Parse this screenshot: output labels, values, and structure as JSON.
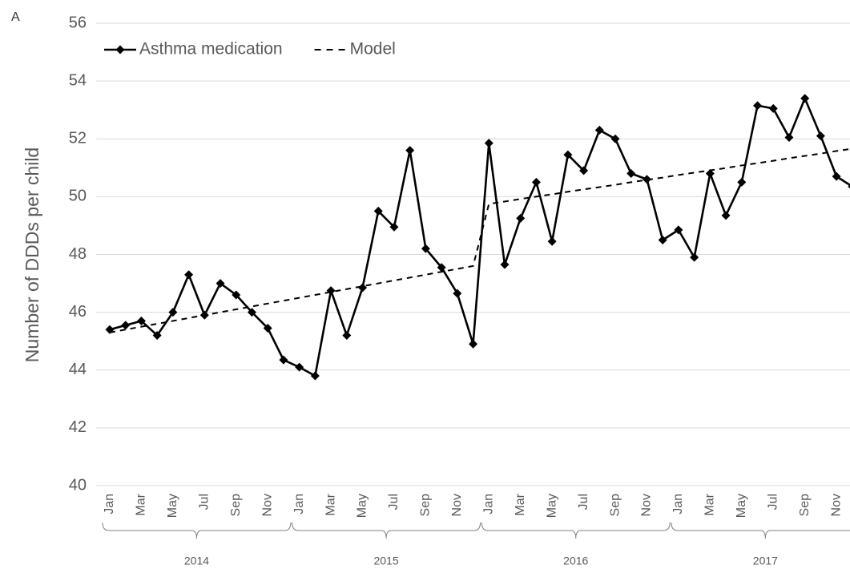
{
  "chart_data": {
    "type": "line",
    "annotation": "A",
    "ylabel": "Number of DDDs per child",
    "categories": [
      "Jan",
      null,
      "Mar",
      null,
      "May",
      null,
      "Jul",
      null,
      "Sep",
      null,
      "Nov",
      null,
      "Jan",
      null,
      "Mar",
      null,
      "May",
      null,
      "Jul",
      null,
      "Sep",
      null,
      "Nov",
      null,
      "Jan",
      null,
      "Mar",
      null,
      "May",
      null,
      "Jul",
      null,
      "Sep",
      null,
      "Nov",
      null,
      "Jan",
      null,
      "Mar",
      null,
      "May",
      null,
      "Jul",
      null,
      "Sep",
      null,
      "Nov",
      null
    ],
    "x_groups": [
      "2014",
      "2015",
      "2016",
      "2017"
    ],
    "series": [
      {
        "name": "Asthma medication",
        "color": "#000000",
        "style": "solid",
        "marker": "diamond",
        "values": [
          45.4,
          45.55,
          45.7,
          45.2,
          46.0,
          47.3,
          45.9,
          47.0,
          46.6,
          46.0,
          45.45,
          44.35,
          44.1,
          43.8,
          46.75,
          45.2,
          46.85,
          49.5,
          48.95,
          51.6,
          48.2,
          47.55,
          46.65,
          44.9,
          51.85,
          47.65,
          49.25,
          50.5,
          48.45,
          51.45,
          50.9,
          52.3,
          52.0,
          50.8,
          50.6,
          48.5,
          48.85,
          47.9,
          50.8,
          49.35,
          50.5,
          53.15,
          53.05,
          52.05,
          53.4,
          52.1,
          50.7,
          50.35
        ]
      },
      {
        "name": "Model",
        "color": "#000000",
        "style": "dashed",
        "marker": "none",
        "values": [
          45.3,
          45.4,
          45.5,
          45.6,
          45.7,
          45.8,
          45.9,
          46.0,
          46.1,
          46.2,
          46.3,
          46.4,
          46.5,
          46.6,
          46.7,
          46.8,
          46.9,
          47.0,
          47.1,
          47.2,
          47.3,
          47.4,
          47.5,
          47.6,
          49.75,
          49.83,
          49.92,
          50.0,
          50.08,
          50.17,
          50.25,
          50.33,
          50.41,
          50.5,
          50.58,
          50.66,
          50.75,
          50.83,
          50.91,
          50.99,
          51.08,
          51.16,
          51.24,
          51.33,
          51.41,
          51.49,
          51.58,
          51.66
        ]
      }
    ],
    "ylim": [
      40,
      56
    ],
    "yticks": [
      40,
      42,
      44,
      46,
      48,
      50,
      52,
      54,
      56
    ],
    "grid": true,
    "legend": "top-left"
  }
}
